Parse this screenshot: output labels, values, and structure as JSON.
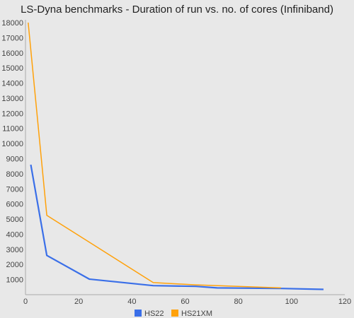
{
  "chart_data": {
    "type": "line",
    "title": "LS-Dyna benchmarks - Duration of run vs. no. of cores (Infiniband)",
    "xlabel": "",
    "ylabel": "",
    "xlim": [
      0,
      120
    ],
    "ylim": [
      0,
      18000
    ],
    "x_ticks": [
      0,
      20,
      40,
      60,
      80,
      100,
      120
    ],
    "y_ticks": [
      1000,
      2000,
      3000,
      4000,
      5000,
      6000,
      7000,
      8000,
      9000,
      10000,
      11000,
      12000,
      13000,
      14000,
      15000,
      16000,
      17000,
      18000
    ],
    "grid": false,
    "legend_position": "bottom",
    "series": [
      {
        "name": "HS22",
        "color": "#3a6fe8",
        "points": [
          [
            2,
            8600
          ],
          [
            8,
            2600
          ],
          [
            24,
            1030
          ],
          [
            48,
            600
          ],
          [
            64,
            550
          ],
          [
            72,
            450
          ],
          [
            96,
            410
          ],
          [
            112,
            350
          ]
        ]
      },
      {
        "name": "HS21XM",
        "color": "#ffa10a",
        "points": [
          [
            1,
            18000
          ],
          [
            8,
            5250
          ],
          [
            48,
            800
          ],
          [
            64,
            650
          ],
          [
            96,
            450
          ]
        ]
      }
    ]
  }
}
